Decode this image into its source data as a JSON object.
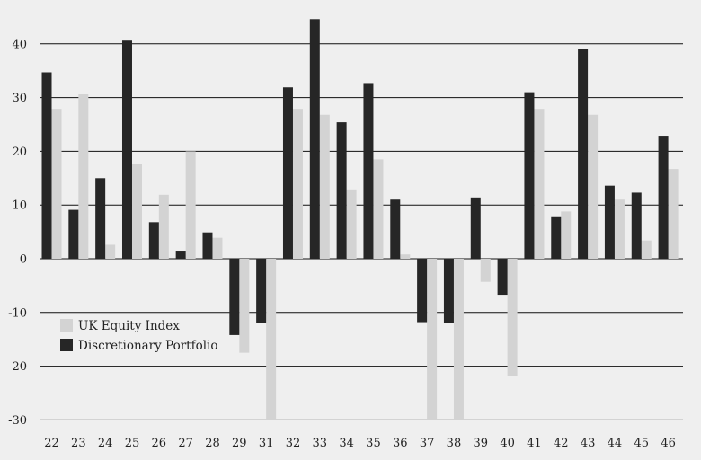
{
  "chart_data": {
    "type": "bar",
    "categories": [
      "22",
      "23",
      "24",
      "25",
      "26",
      "27",
      "28",
      "29",
      "31",
      "32",
      "33",
      "34",
      "35",
      "36",
      "37",
      "38",
      "39",
      "40",
      "41",
      "42",
      "43",
      "44",
      "45",
      "46"
    ],
    "series": [
      {
        "name": "Discretionary Portfolio",
        "color": "#262626",
        "values": [
          34.7,
          9.1,
          15.0,
          40.6,
          6.8,
          1.5,
          4.9,
          -14.2,
          -11.9,
          31.9,
          44.6,
          25.4,
          32.7,
          11.0,
          -11.8,
          -11.9,
          11.4,
          -6.7,
          31.0,
          7.9,
          39.1,
          13.6,
          12.3,
          22.9
        ]
      },
      {
        "name": "UK Equity Index",
        "color": "#d3d3d3",
        "values": [
          27.9,
          30.6,
          2.6,
          17.6,
          11.9,
          20.0,
          3.9,
          -17.5,
          -30.0,
          27.9,
          26.8,
          12.9,
          18.5,
          0.8,
          -30.0,
          -30.0,
          -4.3,
          -21.9,
          27.9,
          8.8,
          26.8,
          11.0,
          3.4,
          16.7
        ]
      }
    ],
    "ylim": [
      -30,
      44.6
    ],
    "yticks": [
      40,
      30,
      20,
      10,
      0,
      -10,
      -20,
      -30
    ],
    "ytick_labels": [
      "40",
      "30",
      "20",
      "10",
      "0",
      "-10",
      "-20",
      "-30"
    ],
    "grid": true,
    "legend": {
      "placement": "lower-left",
      "entries": [
        {
          "label": "UK Equity Index",
          "color": "#d3d3d3"
        },
        {
          "label": "Discretionary Portfolio",
          "color": "#262626"
        }
      ]
    },
    "title": "",
    "xlabel": "",
    "ylabel": ""
  }
}
